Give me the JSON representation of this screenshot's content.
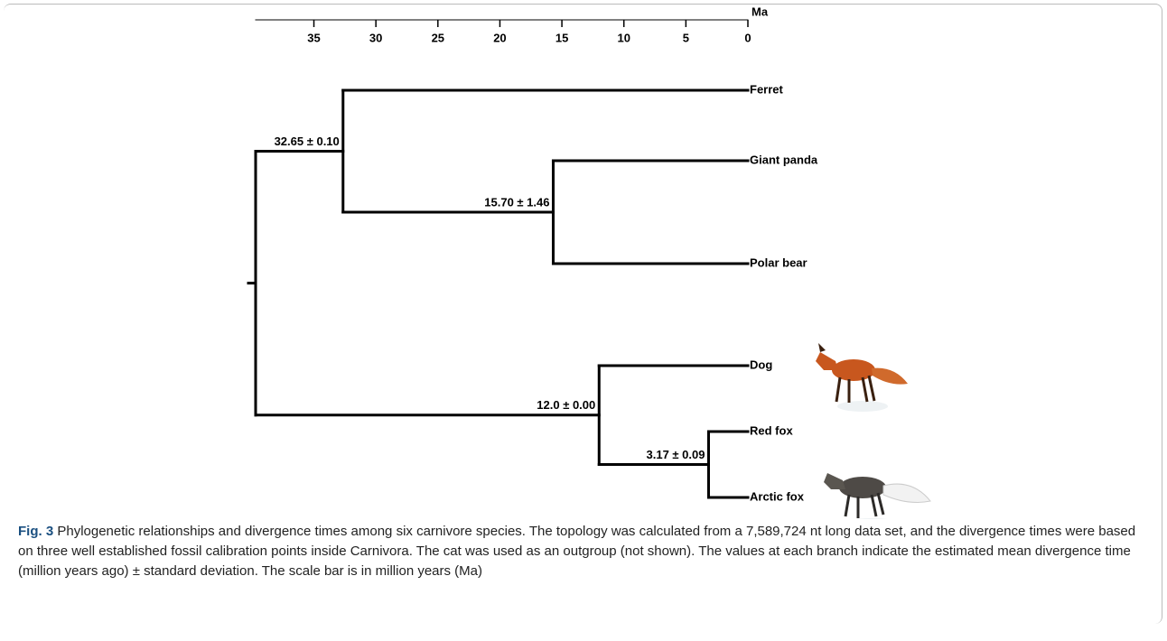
{
  "figure": {
    "axis": {
      "unit": "Ma",
      "xlim": [
        39.7,
        0
      ],
      "ticks": [
        35,
        30,
        25,
        20,
        15,
        10,
        5,
        0
      ]
    },
    "tree": {
      "children": [
        {
          "age": 32.65,
          "label": "32.65 ± 0.10",
          "children": [
            {
              "name": "Ferret"
            },
            {
              "age": 15.7,
              "label": "15.70 ± 1.46",
              "children": [
                {
                  "name": "Giant panda"
                },
                {
                  "name": "Polar bear"
                }
              ]
            }
          ]
        },
        {
          "age": 12.0,
          "label": "12.0 ± 0.00",
          "children": [
            {
              "name": "Dog"
            },
            {
              "age": 3.17,
              "label": "3.17 ± 0.09",
              "children": [
                {
                  "name": "Red fox"
                },
                {
                  "name": "Arctic fox"
                }
              ]
            }
          ]
        }
      ]
    },
    "caption": {
      "label": "Fig. 3",
      "text": "Phylogenetic relationships and divergence times among six carnivore species. The topology was calculated from a 7,589,724 nt long data set, and the divergence times were based on three well established fossil calibration points inside Carnivora. The cat was used as an outgroup (not shown). The values at each branch indicate the estimated mean divergence time (million years ago) ± standard deviation. The scale bar is in million years (Ma)"
    }
  }
}
